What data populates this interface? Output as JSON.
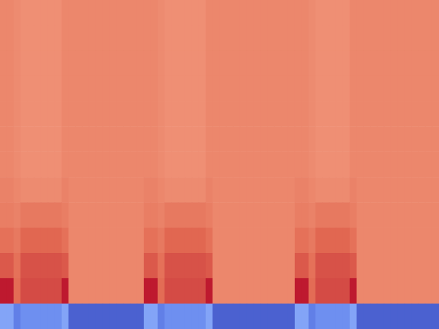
{
  "chart_data": {
    "type": "heatmap",
    "tick_labels": false,
    "zlim": [
      0,
      1
    ],
    "cells": [
      [
        0.79,
        0.79,
        0.78,
        0.77,
        0.77,
        0.77,
        0.77,
        0.77,
        0.77,
        0.79,
        0.79,
        0.79,
        0.79,
        0.79,
        0.79,
        0.79,
        0.79,
        0.79,
        0.79,
        0.79,
        0.79,
        0.79,
        0.79,
        0.78,
        0.77,
        0.77,
        0.77,
        0.77,
        0.77,
        0.77,
        0.79,
        0.79,
        0.79,
        0.79,
        0.79,
        0.79,
        0.79,
        0.79,
        0.79,
        0.79,
        0.79,
        0.79,
        0.79,
        0.79,
        0.79,
        0.78,
        0.77,
        0.77,
        0.77,
        0.77,
        0.77,
        0.79,
        0.79,
        0.79,
        0.79,
        0.79,
        0.79,
        0.79,
        0.79,
        0.79,
        0.79,
        0.79,
        0.79,
        0.79
      ],
      [
        0.79,
        0.79,
        0.78,
        0.77,
        0.77,
        0.77,
        0.77,
        0.77,
        0.77,
        0.79,
        0.79,
        0.79,
        0.79,
        0.79,
        0.79,
        0.79,
        0.79,
        0.79,
        0.79,
        0.79,
        0.79,
        0.79,
        0.79,
        0.78,
        0.77,
        0.77,
        0.77,
        0.77,
        0.77,
        0.77,
        0.79,
        0.79,
        0.79,
        0.79,
        0.79,
        0.79,
        0.79,
        0.79,
        0.79,
        0.79,
        0.79,
        0.79,
        0.79,
        0.79,
        0.79,
        0.78,
        0.77,
        0.77,
        0.77,
        0.77,
        0.77,
        0.79,
        0.79,
        0.79,
        0.79,
        0.79,
        0.79,
        0.79,
        0.79,
        0.79,
        0.79,
        0.79,
        0.79,
        0.79
      ],
      [
        0.79,
        0.79,
        0.78,
        0.77,
        0.77,
        0.77,
        0.77,
        0.77,
        0.77,
        0.79,
        0.79,
        0.79,
        0.79,
        0.79,
        0.79,
        0.79,
        0.79,
        0.79,
        0.79,
        0.79,
        0.79,
        0.79,
        0.79,
        0.78,
        0.77,
        0.77,
        0.77,
        0.77,
        0.77,
        0.77,
        0.79,
        0.79,
        0.79,
        0.79,
        0.79,
        0.79,
        0.79,
        0.79,
        0.79,
        0.79,
        0.79,
        0.79,
        0.79,
        0.79,
        0.79,
        0.78,
        0.77,
        0.77,
        0.77,
        0.77,
        0.77,
        0.79,
        0.79,
        0.79,
        0.79,
        0.79,
        0.79,
        0.79,
        0.79,
        0.79,
        0.79,
        0.79,
        0.79,
        0.79
      ],
      [
        0.79,
        0.79,
        0.78,
        0.77,
        0.77,
        0.77,
        0.77,
        0.77,
        0.77,
        0.79,
        0.79,
        0.79,
        0.79,
        0.79,
        0.79,
        0.79,
        0.79,
        0.79,
        0.79,
        0.79,
        0.79,
        0.79,
        0.79,
        0.78,
        0.77,
        0.77,
        0.77,
        0.77,
        0.77,
        0.77,
        0.79,
        0.79,
        0.79,
        0.79,
        0.79,
        0.79,
        0.79,
        0.79,
        0.79,
        0.79,
        0.79,
        0.79,
        0.79,
        0.79,
        0.79,
        0.78,
        0.77,
        0.77,
        0.77,
        0.77,
        0.77,
        0.79,
        0.79,
        0.79,
        0.79,
        0.79,
        0.79,
        0.79,
        0.79,
        0.79,
        0.79,
        0.79,
        0.79,
        0.79
      ],
      [
        0.79,
        0.79,
        0.78,
        0.77,
        0.77,
        0.77,
        0.77,
        0.77,
        0.77,
        0.79,
        0.79,
        0.79,
        0.79,
        0.79,
        0.79,
        0.79,
        0.79,
        0.79,
        0.79,
        0.79,
        0.79,
        0.79,
        0.79,
        0.78,
        0.77,
        0.77,
        0.77,
        0.77,
        0.77,
        0.77,
        0.79,
        0.79,
        0.79,
        0.79,
        0.79,
        0.79,
        0.79,
        0.79,
        0.79,
        0.79,
        0.79,
        0.79,
        0.79,
        0.79,
        0.79,
        0.78,
        0.77,
        0.77,
        0.77,
        0.77,
        0.77,
        0.79,
        0.79,
        0.79,
        0.79,
        0.79,
        0.79,
        0.79,
        0.79,
        0.79,
        0.79,
        0.79,
        0.79,
        0.79
      ],
      [
        0.79,
        0.79,
        0.78,
        0.77,
        0.77,
        0.77,
        0.77,
        0.77,
        0.77,
        0.79,
        0.79,
        0.79,
        0.79,
        0.79,
        0.79,
        0.79,
        0.79,
        0.79,
        0.79,
        0.79,
        0.79,
        0.79,
        0.79,
        0.78,
        0.77,
        0.77,
        0.77,
        0.77,
        0.77,
        0.77,
        0.79,
        0.79,
        0.79,
        0.79,
        0.79,
        0.79,
        0.79,
        0.79,
        0.79,
        0.79,
        0.79,
        0.79,
        0.79,
        0.79,
        0.79,
        0.78,
        0.77,
        0.77,
        0.77,
        0.77,
        0.77,
        0.79,
        0.79,
        0.79,
        0.79,
        0.79,
        0.79,
        0.79,
        0.79,
        0.79,
        0.79,
        0.79,
        0.79,
        0.79
      ],
      [
        0.79,
        0.79,
        0.78,
        0.77,
        0.77,
        0.77,
        0.77,
        0.77,
        0.77,
        0.79,
        0.79,
        0.79,
        0.79,
        0.79,
        0.79,
        0.79,
        0.79,
        0.79,
        0.79,
        0.79,
        0.79,
        0.79,
        0.79,
        0.78,
        0.77,
        0.77,
        0.77,
        0.77,
        0.77,
        0.77,
        0.79,
        0.79,
        0.79,
        0.79,
        0.79,
        0.79,
        0.79,
        0.79,
        0.79,
        0.79,
        0.79,
        0.79,
        0.79,
        0.79,
        0.79,
        0.78,
        0.77,
        0.77,
        0.77,
        0.77,
        0.77,
        0.79,
        0.79,
        0.79,
        0.79,
        0.79,
        0.79,
        0.79,
        0.79,
        0.79,
        0.79,
        0.79,
        0.79,
        0.79
      ],
      [
        0.8,
        0.8,
        0.79,
        0.78,
        0.78,
        0.78,
        0.78,
        0.78,
        0.78,
        0.8,
        0.79,
        0.79,
        0.79,
        0.79,
        0.79,
        0.79,
        0.79,
        0.79,
        0.79,
        0.79,
        0.79,
        0.8,
        0.8,
        0.79,
        0.78,
        0.78,
        0.78,
        0.78,
        0.78,
        0.78,
        0.8,
        0.79,
        0.79,
        0.79,
        0.79,
        0.79,
        0.79,
        0.79,
        0.79,
        0.79,
        0.79,
        0.79,
        0.79,
        0.8,
        0.8,
        0.79,
        0.78,
        0.78,
        0.78,
        0.78,
        0.78,
        0.8,
        0.79,
        0.79,
        0.79,
        0.79,
        0.79,
        0.79,
        0.79,
        0.79,
        0.79,
        0.79,
        0.79,
        0.79
      ],
      [
        0.81,
        0.81,
        0.8,
        0.82,
        0.82,
        0.82,
        0.82,
        0.82,
        0.82,
        0.81,
        0.79,
        0.79,
        0.79,
        0.79,
        0.79,
        0.79,
        0.79,
        0.79,
        0.79,
        0.79,
        0.79,
        0.81,
        0.81,
        0.8,
        0.82,
        0.82,
        0.82,
        0.82,
        0.82,
        0.82,
        0.81,
        0.79,
        0.79,
        0.79,
        0.79,
        0.79,
        0.79,
        0.79,
        0.79,
        0.79,
        0.79,
        0.79,
        0.79,
        0.81,
        0.81,
        0.8,
        0.82,
        0.82,
        0.82,
        0.82,
        0.82,
        0.81,
        0.79,
        0.79,
        0.79,
        0.79,
        0.79,
        0.79,
        0.79,
        0.79,
        0.79,
        0.79,
        0.79,
        0.79
      ],
      [
        0.84,
        0.84,
        0.82,
        0.86,
        0.86,
        0.86,
        0.86,
        0.86,
        0.86,
        0.84,
        0.79,
        0.79,
        0.79,
        0.79,
        0.79,
        0.79,
        0.79,
        0.79,
        0.79,
        0.79,
        0.79,
        0.84,
        0.84,
        0.82,
        0.86,
        0.86,
        0.86,
        0.86,
        0.86,
        0.86,
        0.84,
        0.79,
        0.79,
        0.79,
        0.79,
        0.79,
        0.79,
        0.79,
        0.79,
        0.79,
        0.79,
        0.79,
        0.79,
        0.84,
        0.84,
        0.82,
        0.86,
        0.86,
        0.86,
        0.86,
        0.86,
        0.84,
        0.79,
        0.79,
        0.79,
        0.79,
        0.79,
        0.79,
        0.79,
        0.79,
        0.79,
        0.79,
        0.79,
        0.79
      ],
      [
        0.88,
        0.88,
        0.84,
        0.89,
        0.89,
        0.89,
        0.89,
        0.89,
        0.89,
        0.88,
        0.79,
        0.79,
        0.79,
        0.79,
        0.79,
        0.79,
        0.79,
        0.79,
        0.79,
        0.79,
        0.79,
        0.88,
        0.88,
        0.84,
        0.89,
        0.89,
        0.89,
        0.89,
        0.89,
        0.89,
        0.88,
        0.79,
        0.79,
        0.79,
        0.79,
        0.79,
        0.79,
        0.79,
        0.79,
        0.79,
        0.79,
        0.79,
        0.79,
        0.88,
        0.88,
        0.84,
        0.89,
        0.89,
        0.89,
        0.89,
        0.89,
        0.88,
        0.79,
        0.79,
        0.79,
        0.79,
        0.79,
        0.79,
        0.79,
        0.79,
        0.79,
        0.79,
        0.79,
        0.79
      ],
      [
        0.97,
        0.97,
        0.85,
        0.9,
        0.9,
        0.9,
        0.9,
        0.9,
        0.9,
        0.97,
        0.79,
        0.79,
        0.79,
        0.79,
        0.79,
        0.79,
        0.79,
        0.79,
        0.79,
        0.79,
        0.79,
        0.97,
        0.97,
        0.85,
        0.9,
        0.9,
        0.9,
        0.9,
        0.9,
        0.9,
        0.97,
        0.79,
        0.79,
        0.79,
        0.79,
        0.79,
        0.79,
        0.79,
        0.79,
        0.79,
        0.79,
        0.79,
        0.79,
        0.97,
        0.97,
        0.85,
        0.9,
        0.9,
        0.9,
        0.9,
        0.9,
        0.97,
        0.79,
        0.79,
        0.79,
        0.79,
        0.79,
        0.79,
        0.79,
        0.79,
        0.79,
        0.79,
        0.79,
        0.79
      ],
      [
        0.22,
        0.22,
        0.12,
        0.16,
        0.16,
        0.16,
        0.16,
        0.16,
        0.16,
        0.22,
        0.05,
        0.05,
        0.05,
        0.05,
        0.05,
        0.05,
        0.05,
        0.05,
        0.05,
        0.05,
        0.05,
        0.22,
        0.22,
        0.12,
        0.16,
        0.16,
        0.16,
        0.16,
        0.16,
        0.16,
        0.22,
        0.05,
        0.05,
        0.05,
        0.05,
        0.05,
        0.05,
        0.05,
        0.05,
        0.05,
        0.05,
        0.05,
        0.05,
        0.22,
        0.22,
        0.12,
        0.16,
        0.16,
        0.16,
        0.16,
        0.16,
        0.22,
        0.05,
        0.05,
        0.05,
        0.05,
        0.05,
        0.05,
        0.05,
        0.05,
        0.05,
        0.05,
        0.05,
        0.05
      ]
    ]
  }
}
